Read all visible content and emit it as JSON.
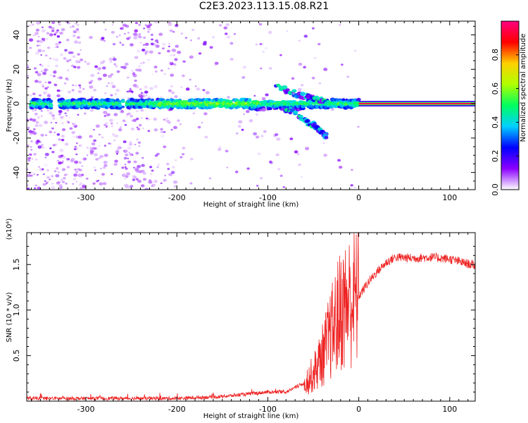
{
  "title": "C2E3.2023.113.15.08.R21",
  "chart_data": [
    {
      "type": "heatmap",
      "xlabel": "Height of straight line (km)",
      "ylabel": "Frequency (Hz)",
      "xlim": [
        -365,
        128
      ],
      "ylim": [
        -50,
        48
      ],
      "xticks": [
        -300,
        -200,
        -100,
        0,
        100
      ],
      "yticks": [
        -40,
        -20,
        0,
        20,
        40
      ],
      "colorbar": {
        "label": "Normalized spectral amplitude",
        "range": [
          0,
          1
        ],
        "ticks": [
          "0.0",
          "0.2",
          "0.4",
          "0.6",
          "0.8"
        ],
        "colors": [
          "#ffffff",
          "#8b00ff",
          "#0000ff",
          "#00d0ff",
          "#00ff60",
          "#b0ff00",
          "#ffd000",
          "#ff0000",
          "#ff0080"
        ]
      },
      "features": [
        {
          "name": "carrier",
          "x": [
            0,
            128
          ],
          "freq": 0,
          "amplitude": 0.95
        },
        {
          "name": "main band",
          "x": [
            -365,
            0
          ],
          "freq": 0,
          "amplitude": 0.5
        },
        {
          "name": "upper branch",
          "points": [
            [
              -90,
              10
            ],
            [
              -70,
              6
            ],
            [
              -50,
              3
            ],
            [
              -35,
              1
            ]
          ]
        },
        {
          "name": "lower branch",
          "points": [
            [
              -80,
              -3
            ],
            [
              -60,
              -9
            ],
            [
              -45,
              -14
            ],
            [
              -35,
              -20
            ]
          ]
        }
      ]
    },
    {
      "type": "line",
      "xlabel": "Height of straight line (km)",
      "ylabel": "SNR (10 * v/v)",
      "y_multiplier": "(x10⁴)",
      "xlim": [
        -365,
        128
      ],
      "ylim": [
        0,
        1.85
      ],
      "xticks": [
        -300,
        -200,
        -100,
        0,
        100
      ],
      "yticks": [
        "0.5",
        "1.0",
        "1.5"
      ],
      "series_color": "#ee2222",
      "envelope_x": [
        -365,
        -300,
        -200,
        -150,
        -120,
        -100,
        -80,
        -60,
        -50,
        -40,
        -30,
        -20,
        -10,
        0,
        10,
        20,
        30,
        40,
        60,
        80,
        100,
        115,
        128
      ],
      "envelope_y": [
        0.03,
        0.03,
        0.03,
        0.05,
        0.08,
        0.1,
        0.1,
        0.2,
        0.3,
        0.5,
        0.75,
        1.0,
        1.1,
        1.15,
        1.3,
        1.42,
        1.52,
        1.58,
        1.57,
        1.58,
        1.56,
        1.52,
        1.49
      ]
    }
  ]
}
